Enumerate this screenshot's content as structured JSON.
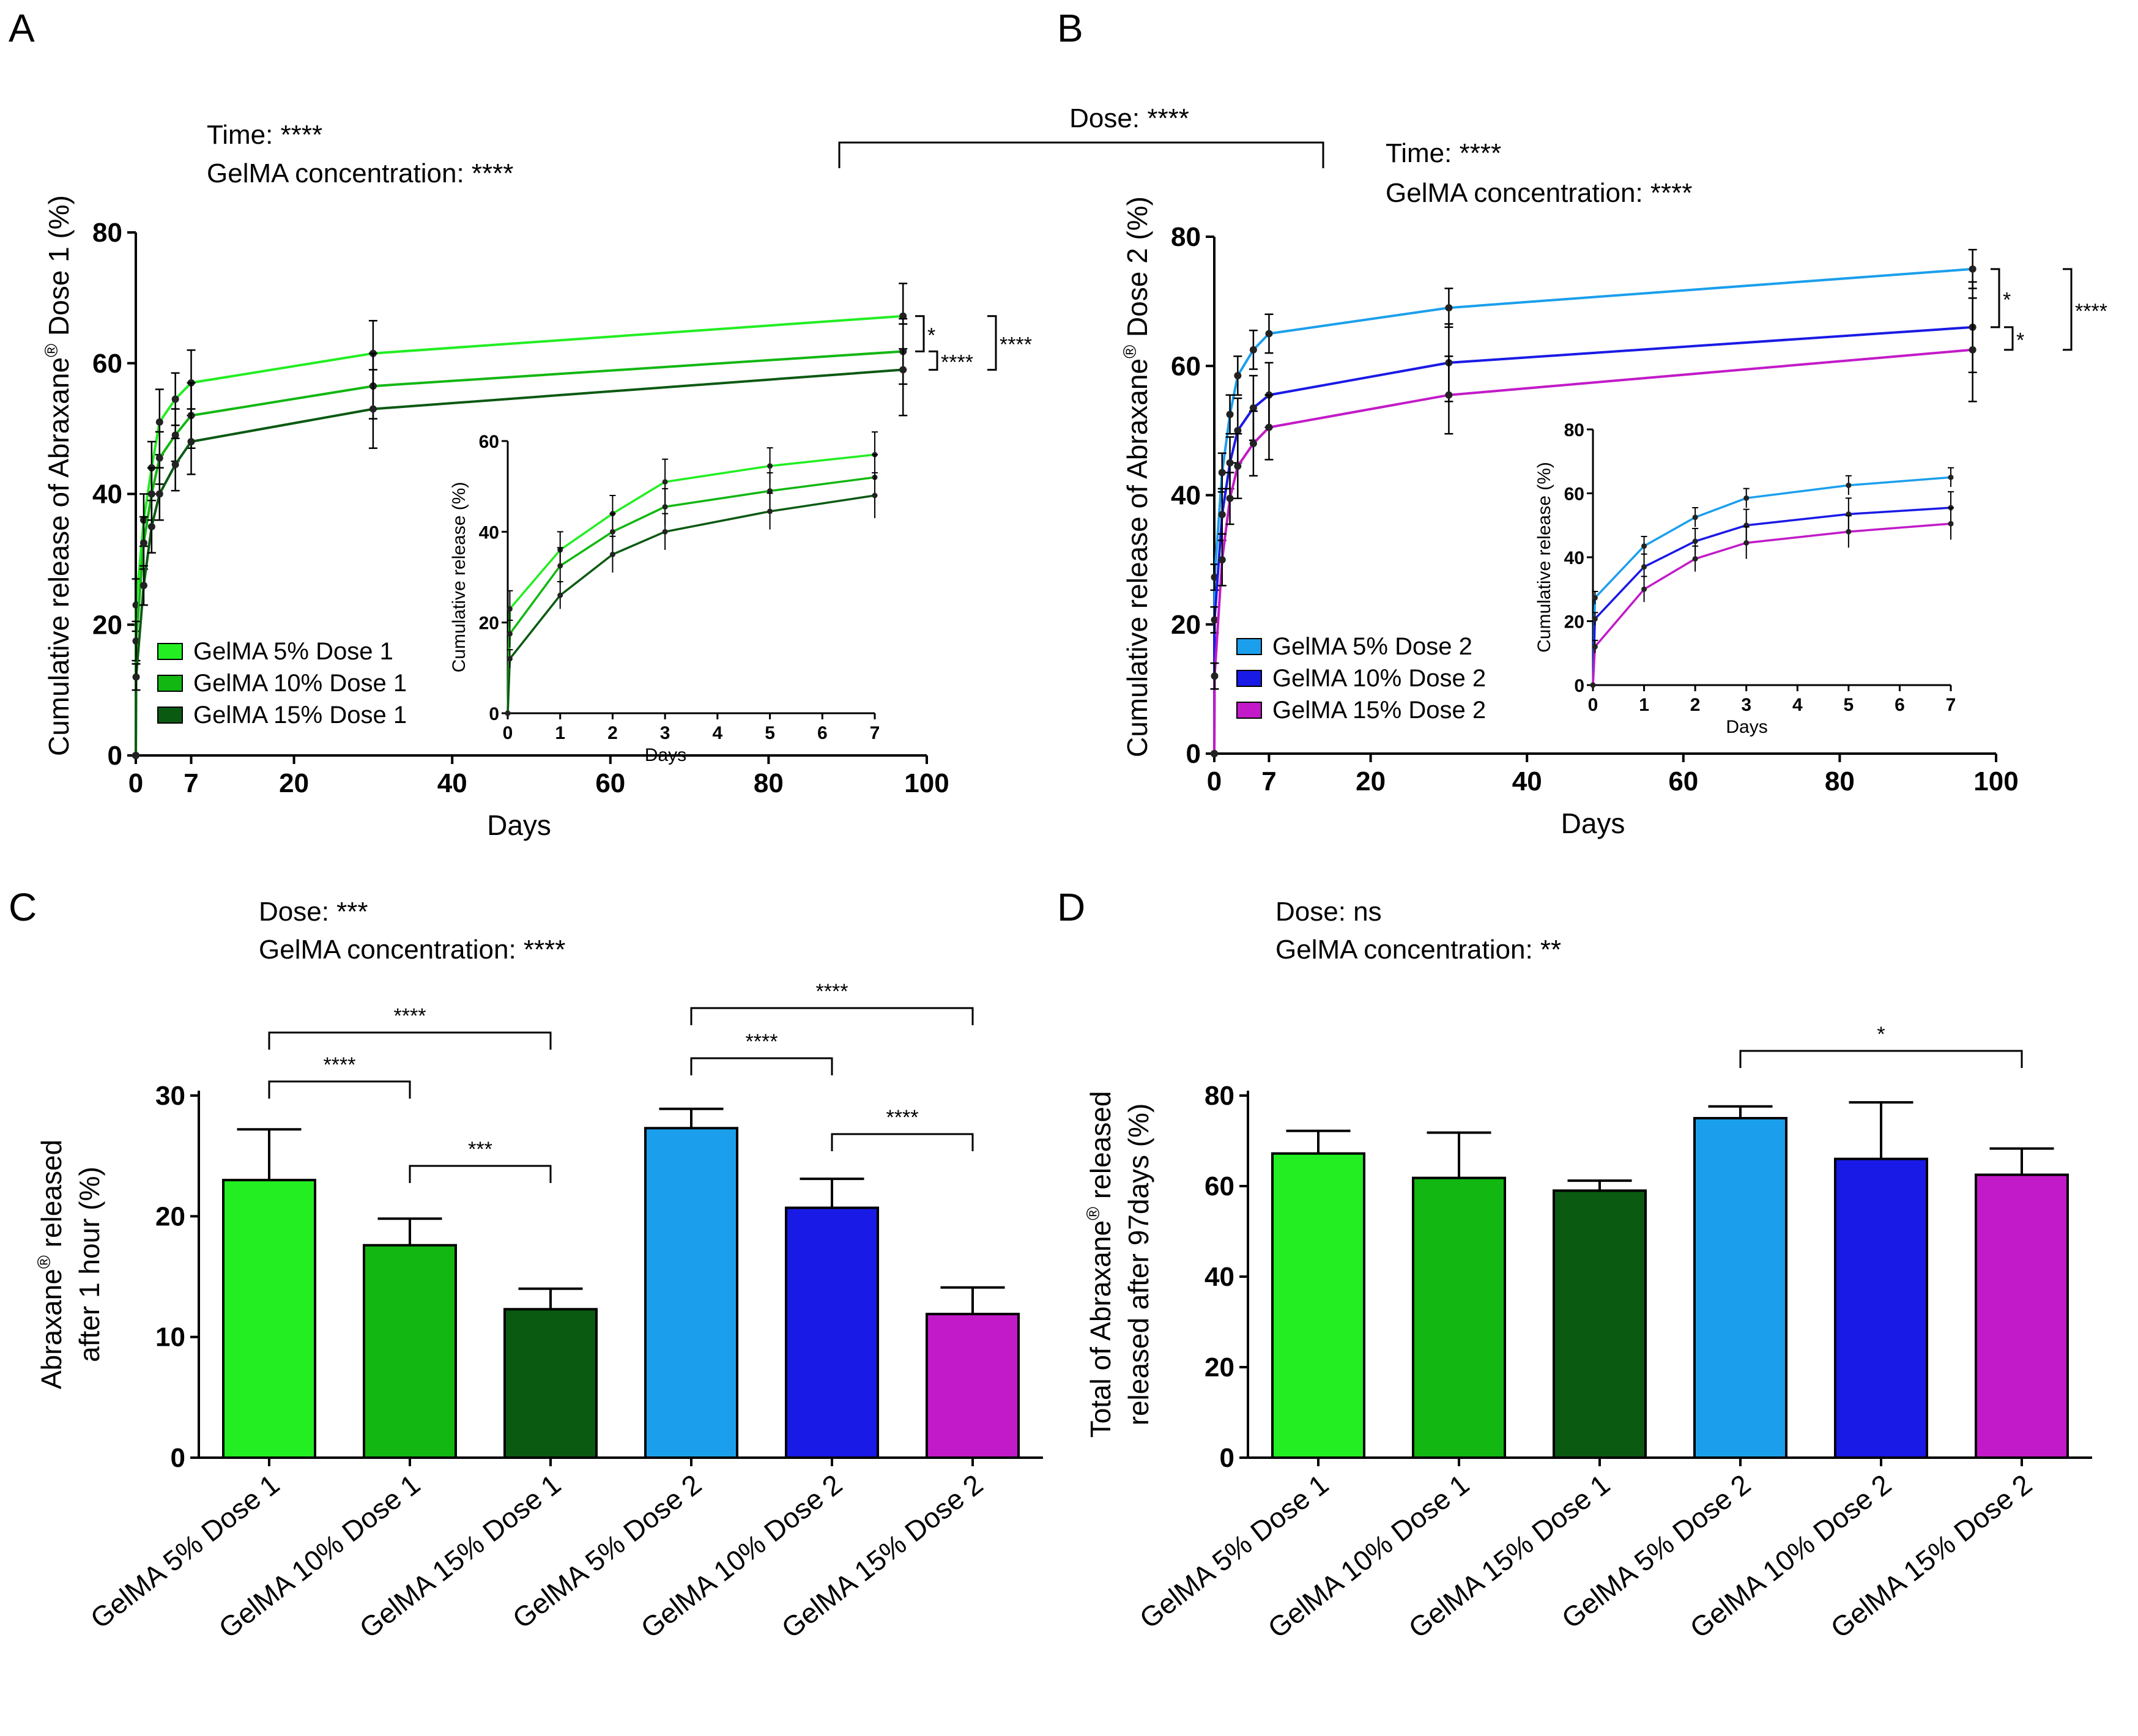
{
  "panels": {
    "A": {
      "label": "A",
      "stats": [
        "Time: ****",
        "GelMA concentration: ****"
      ]
    },
    "B": {
      "label": "B",
      "stats": [
        "Time: ****",
        "GelMA concentration: ****"
      ]
    },
    "C": {
      "label": "C",
      "stats": [
        "Dose: ***",
        "GelMA concentration: ****"
      ]
    },
    "D": {
      "label": "D",
      "stats": [
        "Dose: ns",
        "GelMA concentration: **"
      ]
    }
  },
  "cross_panel_annotation": "Dose: ****",
  "colors": {
    "g5": "#22ee22",
    "g10": "#12b712",
    "g15": "#0b5a12",
    "b5": "#1b9fec",
    "b10": "#1a1ae6",
    "b15": "#c21ac8"
  },
  "chart_data": [
    {
      "id": "A",
      "type": "line",
      "ylabel": "Cumulative release of Abraxane® Dose 1 (%)",
      "xlabel": "Days",
      "xticks": [
        "0",
        "7",
        "20",
        "40",
        "60",
        "80",
        "100"
      ],
      "yticks": [
        "0",
        "20",
        "40",
        "60",
        "80"
      ],
      "xlim": [
        0,
        100
      ],
      "ylim": [
        0,
        80
      ],
      "x": [
        0,
        0.04,
        1,
        2,
        3,
        5,
        7,
        30,
        97
      ],
      "series": [
        {
          "name": "GelMA 5% Dose 1",
          "color": "#22ee22",
          "values": [
            0,
            23,
            36,
            44,
            51,
            54.5,
            57,
            61.5,
            67.2
          ],
          "err": [
            0,
            4,
            4,
            4,
            5,
            4,
            5,
            5,
            5
          ]
        },
        {
          "name": "GelMA 10% Dose 1",
          "color": "#12b712",
          "values": [
            0,
            17.5,
            32.5,
            40,
            45.5,
            49,
            52,
            56.5,
            61.8
          ],
          "err": [
            0,
            3,
            4,
            4,
            4,
            4,
            5,
            5,
            5
          ]
        },
        {
          "name": "GelMA 15% Dose 1",
          "color": "#0b5a12",
          "values": [
            0,
            12,
            26,
            35,
            40,
            44.5,
            48,
            53,
            59
          ],
          "err": [
            0,
            2,
            3,
            4,
            4,
            4,
            5,
            6,
            7
          ]
        }
      ],
      "inset": {
        "ylabel": "Cumulative release (%)",
        "xlabel": "Days",
        "xticks": [
          "0",
          "1",
          "2",
          "3",
          "4",
          "5",
          "6",
          "7"
        ],
        "yticks": [
          "0",
          "20",
          "40",
          "60"
        ],
        "xlim": [
          0,
          7
        ],
        "ylim": [
          0,
          60
        ]
      }
    },
    {
      "id": "B",
      "type": "line",
      "ylabel": "Cumulative release of Abraxane® Dose 2 (%)",
      "xlabel": "Days",
      "xticks": [
        "0",
        "7",
        "20",
        "40",
        "60",
        "80",
        "100"
      ],
      "yticks": [
        "0",
        "20",
        "40",
        "60",
        "80"
      ],
      "xlim": [
        0,
        100
      ],
      "ylim": [
        0,
        80
      ],
      "x": [
        0,
        0.04,
        1,
        2,
        3,
        5,
        7,
        30,
        97
      ],
      "series": [
        {
          "name": "GelMA 5% Dose 2",
          "color": "#1b9fec",
          "values": [
            0,
            27.3,
            43.5,
            52.5,
            58.5,
            62.5,
            65,
            69,
            75
          ],
          "err": [
            0,
            2,
            3,
            3,
            3,
            3,
            3,
            3,
            3
          ]
        },
        {
          "name": "GelMA 10% Dose 2",
          "color": "#1a1ae6",
          "values": [
            0,
            20.7,
            37,
            45,
            50,
            53.5,
            55.5,
            60.5,
            66
          ],
          "err": [
            0,
            2,
            4,
            4,
            5,
            5,
            5,
            6,
            7
          ]
        },
        {
          "name": "GelMA 15% Dose 2",
          "color": "#c21ac8",
          "values": [
            0,
            12,
            30,
            39.5,
            44.5,
            48,
            50.5,
            55.5,
            62.5
          ],
          "err": [
            0,
            2,
            4,
            4,
            5,
            5,
            5,
            6,
            8
          ]
        }
      ],
      "inset": {
        "ylabel": "Cumulative release (%)",
        "xlabel": "Days",
        "xticks": [
          "0",
          "1",
          "2",
          "3",
          "4",
          "5",
          "6",
          "7"
        ],
        "yticks": [
          "0",
          "20",
          "40",
          "60",
          "80"
        ],
        "xlim": [
          0,
          7
        ],
        "ylim": [
          0,
          80
        ]
      }
    },
    {
      "id": "C",
      "type": "bar",
      "ylabel": "Abraxane® released after 1 hour (%)",
      "yticks": [
        "0",
        "10",
        "20",
        "30"
      ],
      "ylim": [
        0,
        30
      ],
      "categories": [
        "GelMA 5% Dose 1",
        "GelMA 10% Dose 1",
        "GelMA 15% Dose 1",
        "GelMA 5% Dose 2",
        "GelMA 10% Dose 2",
        "GelMA 15% Dose 2"
      ],
      "values": [
        23,
        17.6,
        12.3,
        27.3,
        20.7,
        11.9
      ],
      "errors": [
        4.2,
        2.2,
        1.7,
        1.6,
        2.4,
        2.2
      ],
      "colors": [
        "#22ee22",
        "#12b712",
        "#0b5a12",
        "#1b9fec",
        "#1a1ae6",
        "#c21ac8"
      ],
      "brackets": [
        {
          "from": 0,
          "to": 1,
          "label": "****"
        },
        {
          "from": 0,
          "to": 2,
          "label": "****"
        },
        {
          "from": 1,
          "to": 2,
          "label": "***"
        },
        {
          "from": 3,
          "to": 4,
          "label": "****"
        },
        {
          "from": 3,
          "to": 5,
          "label": "****"
        },
        {
          "from": 4,
          "to": 5,
          "label": "****"
        }
      ]
    },
    {
      "id": "D",
      "type": "bar",
      "ylabel": "Total of Abraxane® released after 97days (%)",
      "yticks": [
        "0",
        "20",
        "40",
        "60",
        "80"
      ],
      "ylim": [
        0,
        80
      ],
      "categories": [
        "GelMA 5% Dose 1",
        "GelMA 10% Dose 1",
        "GelMA 15% Dose 1",
        "GelMA 5% Dose 2",
        "GelMA 10% Dose 2",
        "GelMA 15% Dose 2"
      ],
      "values": [
        67.2,
        61.8,
        59,
        75,
        66,
        62.5
      ],
      "errors": [
        5,
        10,
        2.2,
        2.6,
        12.5,
        5.8
      ],
      "colors": [
        "#22ee22",
        "#12b712",
        "#0b5a12",
        "#1b9fec",
        "#1a1ae6",
        "#c21ac8"
      ],
      "brackets": [
        {
          "from": 3,
          "to": 5,
          "label": "*"
        }
      ]
    }
  ],
  "line_sig": {
    "A": [
      {
        "a": 0,
        "b": 1,
        "label": "*"
      },
      {
        "a": 1,
        "b": 2,
        "label": "****"
      },
      {
        "a": 0,
        "b": 2,
        "label": "****"
      }
    ],
    "B": [
      {
        "a": 0,
        "b": 1,
        "label": "*"
      },
      {
        "a": 1,
        "b": 2,
        "label": "*"
      },
      {
        "a": 0,
        "b": 2,
        "label": "****"
      }
    ]
  }
}
